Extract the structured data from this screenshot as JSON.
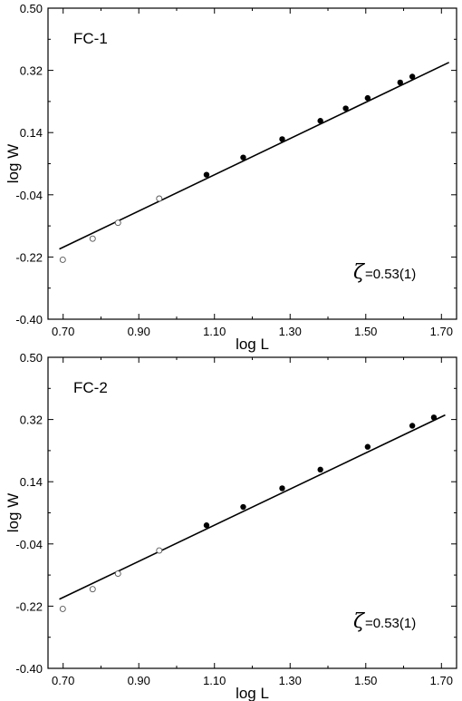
{
  "chart_data": [
    {
      "type": "scatter",
      "title": "FC-1",
      "xlabel": "log L",
      "ylabel": "log W",
      "xlim": [
        0.66,
        1.74
      ],
      "ylim": [
        -0.4,
        0.5
      ],
      "xticks": [
        "0.70",
        "0.90",
        "1.10",
        "1.30",
        "1.50",
        "1.70"
      ],
      "yticks": [
        "0.50",
        "0.32",
        "0.14",
        "-0.04",
        "-0.22",
        "-0.40"
      ],
      "grid": false,
      "annotation": {
        "symbol": "ζ",
        "value": "=0.53(1)"
      },
      "fit_line": {
        "x": [
          0.69,
          1.72
        ],
        "y": [
          -0.197,
          0.343
        ]
      },
      "series": [
        {
          "marker": "open-circle",
          "points": [
            [
              0.699,
              -0.228
            ],
            [
              0.778,
              -0.167
            ],
            [
              0.845,
              -0.121
            ],
            [
              0.954,
              -0.051
            ]
          ]
        },
        {
          "marker": "filled-circle",
          "points": [
            [
              1.079,
              0.018
            ],
            [
              1.176,
              0.068
            ],
            [
              1.279,
              0.121
            ],
            [
              1.38,
              0.174
            ],
            [
              1.447,
              0.21
            ],
            [
              1.505,
              0.24
            ],
            [
              1.591,
              0.285
            ],
            [
              1.623,
              0.302
            ]
          ]
        }
      ]
    },
    {
      "type": "scatter",
      "title": "FC-2",
      "xlabel": "log L",
      "ylabel": "log W",
      "xlim": [
        0.66,
        1.74
      ],
      "ylim": [
        -0.4,
        0.5
      ],
      "xticks": [
        "0.70",
        "0.90",
        "1.10",
        "1.30",
        "1.50",
        "1.70"
      ],
      "yticks": [
        "0.50",
        "0.32",
        "0.14",
        "-0.04",
        "-0.22",
        "-0.40"
      ],
      "grid": false,
      "annotation": {
        "symbol": "ζ",
        "value": "=0.53(1)"
      },
      "fit_line": {
        "x": [
          0.69,
          1.71
        ],
        "y": [
          -0.2,
          0.333
        ]
      },
      "series": [
        {
          "marker": "open-circle",
          "points": [
            [
              0.699,
              -0.228
            ],
            [
              0.778,
              -0.171
            ],
            [
              0.845,
              -0.126
            ],
            [
              0.954,
              -0.059
            ]
          ]
        },
        {
          "marker": "filled-circle",
          "points": [
            [
              1.079,
              0.014
            ],
            [
              1.176,
              0.067
            ],
            [
              1.279,
              0.121
            ],
            [
              1.38,
              0.175
            ],
            [
              1.505,
              0.241
            ],
            [
              1.623,
              0.302
            ],
            [
              1.68,
              0.326
            ]
          ]
        }
      ]
    }
  ]
}
